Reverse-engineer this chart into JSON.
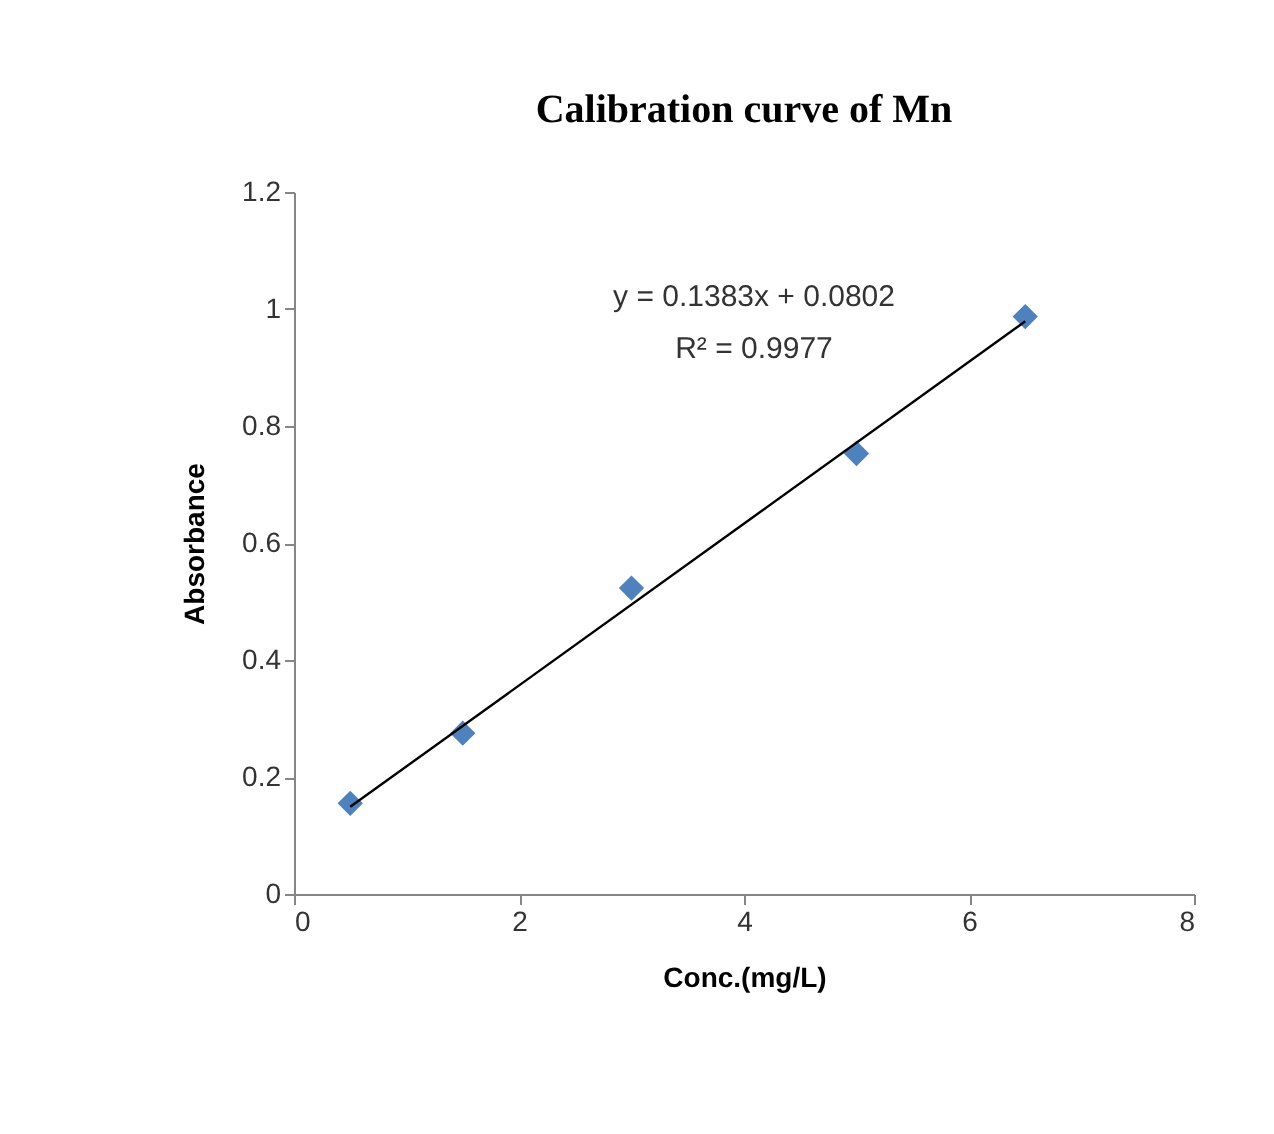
{
  "chart_data": {
    "type": "scatter",
    "title": "Calibration curve of Mn",
    "xlabel": "Conc.(mg/L)",
    "ylabel": "Absorbance",
    "x": [
      0.5,
      1.5,
      3,
      5,
      6.5
    ],
    "series": [
      {
        "color": "#4f81bd",
        "marker": "diamond",
        "values": [
          0.155,
          0.275,
          0.523,
          0.753,
          0.987
        ]
      },
      {
        "type": "line",
        "color": "#000000",
        "x": [
          0.5,
          6.5
        ],
        "values": [
          0.149,
          0.979
        ],
        "line_style": "solid"
      }
    ],
    "annotations": [
      "y = 0.1383x + 0.0802",
      "R² = 0.9977"
    ],
    "xlim": [
      0,
      8
    ],
    "xticks": [
      0,
      2,
      4,
      6,
      8
    ],
    "ylim": [
      0,
      1.2
    ],
    "yticks": [
      0,
      0.2,
      0.4,
      0.6,
      0.8,
      1,
      1.2
    ],
    "grid": false
  }
}
